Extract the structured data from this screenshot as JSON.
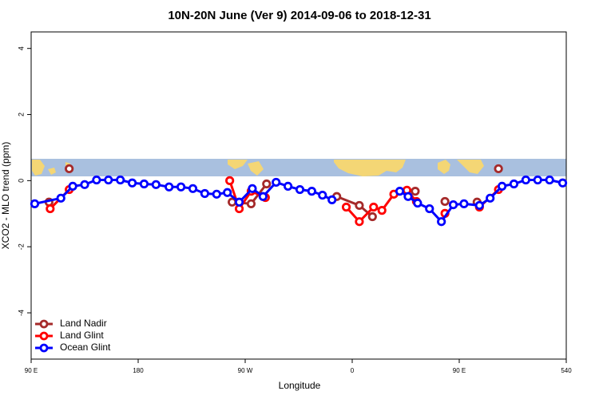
{
  "chart_data": {
    "type": "line",
    "title": "10N-20N June (Ver 9)   2014-09-06 to 2018-12-31",
    "x_label": "Longitude",
    "y_label": "XCO2 - MLO trend (ppm)",
    "xlim": [
      90,
      540
    ],
    "xticks": [
      {
        "value": 90,
        "label": "90 E"
      },
      180,
      {
        "value": 270,
        "label": "90 W"
      },
      {
        "value": 360,
        "label": "0"
      },
      {
        "value": 450,
        "label": "90 E"
      },
      540
    ],
    "ylim": [
      -5.4,
      4.5
    ],
    "yticks": [
      -4,
      -2,
      0,
      2,
      4
    ],
    "legend": "bottom-left",
    "series": [
      {
        "name": "Land Nadir",
        "color": "#a52a2a",
        "x": [
          105,
          null,
          122,
          null,
          259,
          275,
          288,
          null,
          347,
          366,
          377,
          null,
          413,
          null,
          438,
          null,
          465,
          null,
          483
        ],
        "values": [
          -0.65,
          null,
          0.36,
          null,
          -0.65,
          -0.7,
          -0.1,
          null,
          -0.48,
          -0.75,
          -1.09,
          null,
          -0.32,
          null,
          -0.63,
          null,
          -0.65,
          null,
          0.36
        ]
      },
      {
        "name": "Land Glint",
        "color": "#ff0000",
        "x": [
          106,
          122,
          null,
          257,
          265,
          275,
          287,
          null,
          355,
          366,
          378,
          385,
          395,
          406,
          414,
          null,
          438,
          null,
          467,
          483
        ],
        "values": [
          -0.85,
          -0.27,
          null,
          0,
          -0.85,
          -0.32,
          -0.51,
          null,
          -0.8,
          -1.24,
          -0.8,
          -0.9,
          -0.41,
          -0.29,
          -0.63,
          null,
          -0.99,
          null,
          -0.8,
          -0.27
        ]
      },
      {
        "name": "Ocean Glint",
        "color": "#0000ff",
        "x": [
          93,
          115,
          125,
          135,
          145,
          155,
          165,
          175,
          185,
          195,
          206,
          216,
          226,
          236,
          246,
          255,
          265,
          276,
          285,
          296,
          306,
          316,
          326,
          335,
          343,
          null,
          400,
          407,
          415,
          425,
          435,
          445,
          454,
          467,
          476,
          486,
          496,
          506,
          516,
          526,
          537
        ],
        "values": [
          -0.7,
          -0.53,
          -0.17,
          -0.12,
          0.02,
          0.02,
          0.02,
          -0.07,
          -0.1,
          -0.12,
          -0.19,
          -0.19,
          -0.24,
          -0.39,
          -0.41,
          -0.36,
          -0.65,
          -0.24,
          -0.48,
          -0.05,
          -0.17,
          -0.27,
          -0.32,
          -0.44,
          -0.58,
          null,
          -0.32,
          -0.48,
          -0.68,
          -0.85,
          -1.24,
          -0.73,
          -0.7,
          -0.75,
          -0.53,
          -0.17,
          -0.1,
          0.02,
          0.02,
          0.02,
          -0.07
        ]
      }
    ]
  }
}
